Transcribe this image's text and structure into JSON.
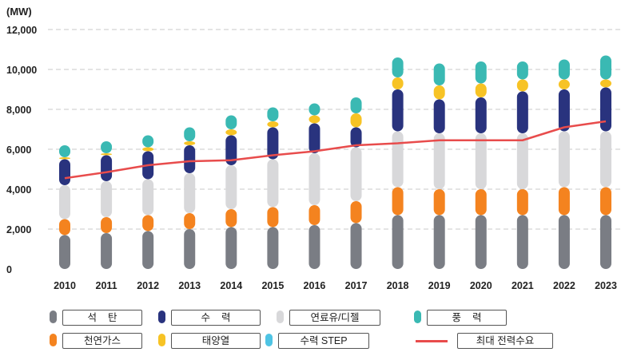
{
  "chart_data": {
    "type": "bar",
    "stacked": true,
    "unit_label": "(MW)",
    "categories": [
      "2010",
      "2011",
      "2012",
      "2013",
      "2014",
      "2015",
      "2016",
      "2017",
      "2018",
      "2019",
      "2020",
      "2021",
      "2022",
      "2023"
    ],
    "ylim": [
      0,
      12000
    ],
    "yticks": [
      "0",
      "2,000",
      "4,000",
      "6,000",
      "8,000",
      "10,000",
      "12,000"
    ],
    "ytick_values": [
      0,
      2000,
      4000,
      6000,
      8000,
      10000,
      12000
    ],
    "grid": true,
    "series": [
      {
        "name": "석    탄",
        "color": "#7a7d84",
        "values": [
          1700,
          1800,
          1900,
          2000,
          2100,
          2100,
          2200,
          2300,
          2700,
          2700,
          2700,
          2700,
          2700,
          2700
        ]
      },
      {
        "name": "천연가스",
        "color": "#f4831f",
        "values": [
          800,
          800,
          800,
          800,
          900,
          1000,
          1000,
          1100,
          1400,
          1300,
          1300,
          1300,
          1400,
          1400
        ]
      },
      {
        "name": "연료유/디젤",
        "color": "#d8d8da",
        "values": [
          1700,
          1800,
          1800,
          2000,
          2200,
          2400,
          2600,
          2700,
          2800,
          2800,
          2800,
          2800,
          2800,
          2800
        ]
      },
      {
        "name": "수    력",
        "color": "#29337e",
        "values": [
          1300,
          1300,
          1400,
          1400,
          1500,
          1600,
          1500,
          1000,
          2100,
          1700,
          1800,
          2100,
          2100,
          2200
        ]
      },
      {
        "name": "태양열",
        "color": "#f7c325",
        "values": [
          100,
          100,
          200,
          200,
          300,
          300,
          400,
          700,
          600,
          700,
          700,
          600,
          500,
          400
        ]
      },
      {
        "name": "수력 STEP",
        "color": "#4fc4e4",
        "values": [
          0,
          0,
          0,
          0,
          0,
          0,
          0,
          0,
          0,
          0,
          0,
          0,
          0,
          0
        ]
      },
      {
        "name": "풍    력",
        "color": "#3ab9b3",
        "values": [
          600,
          600,
          600,
          700,
          700,
          700,
          600,
          800,
          1000,
          1100,
          1100,
          900,
          1000,
          1200
        ]
      }
    ],
    "line_series": {
      "name": "최대 전력수요",
      "color": "#e84c4c",
      "values": [
        4550,
        4850,
        5200,
        5400,
        5450,
        5700,
        5900,
        6200,
        6300,
        6450,
        6450,
        6450,
        7100,
        7400
      ]
    },
    "legend_position": "bottom"
  },
  "legend": {
    "items": [
      {
        "label": "석    탄",
        "color": "#7a7d84",
        "kind": "swatch"
      },
      {
        "label": "수    력",
        "color": "#29337e",
        "kind": "swatch"
      },
      {
        "label": "연료유/디젤",
        "color": "#d8d8da",
        "kind": "swatch"
      },
      {
        "label": "풍    력",
        "color": "#3ab9b3",
        "kind": "swatch"
      },
      {
        "label": "천연가스",
        "color": "#f4831f",
        "kind": "swatch"
      },
      {
        "label": "태양열",
        "color": "#f7c325",
        "kind": "swatch"
      },
      {
        "label": "수력 STEP",
        "color": "#4fc4e4",
        "kind": "swatch"
      },
      {
        "label": "최대 전력수요",
        "color": "#e84c4c",
        "kind": "line"
      }
    ]
  }
}
